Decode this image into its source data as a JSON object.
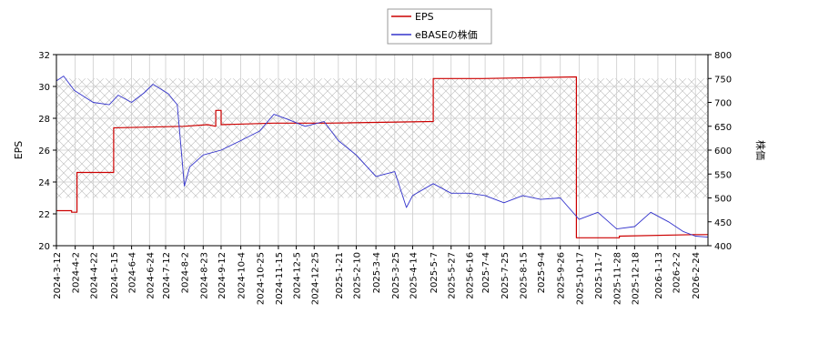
{
  "chart_data": {
    "type": "line",
    "legend": {
      "placement": "top-center",
      "entries": [
        "EPS",
        "eBASEの株価"
      ]
    },
    "ylabel_left": "EPS",
    "ylabel_right": "株価",
    "ylim_left": [
      20,
      32
    ],
    "ylim_right": [
      400,
      800
    ],
    "yticks_left": [
      "20",
      "22",
      "24",
      "26",
      "28",
      "30",
      "32"
    ],
    "yticks_right": [
      "400",
      "450",
      "500",
      "550",
      "600",
      "650",
      "700",
      "750",
      "800"
    ],
    "x_range": [
      "2024-03-12",
      "2026-03-10"
    ],
    "xticks": [
      "2024-3-12",
      "2024-4-2",
      "2024-4-22",
      "2024-5-15",
      "2024-6-4",
      "2024-6-24",
      "2024-7-12",
      "2024-8-2",
      "2024-8-23",
      "2024-9-12",
      "2024-10-4",
      "2024-10-25",
      "2024-11-15",
      "2024-12-5",
      "2024-12-25",
      "2025-1-21",
      "2025-2-10",
      "2025-3-4",
      "2025-3-25",
      "2025-4-14",
      "2025-5-7",
      "2025-5-27",
      "2025-6-16",
      "2025-7-4",
      "2025-7-25",
      "2025-8-15",
      "2025-9-4",
      "2025-9-26",
      "2025-10-17",
      "2025-11-7",
      "2025-11-28",
      "2025-12-18",
      "2026-1-13",
      "2026-2-2",
      "2026-2-24"
    ],
    "grid": true,
    "hatch_band_right": [
      500,
      750
    ],
    "colors": {
      "eps": "#cc0000",
      "price": "#3333cc",
      "grid": "#cccccc",
      "hatch": "#bbbbbb"
    },
    "series": [
      {
        "name": "EPS",
        "axis": "left",
        "points": [
          [
            "2024-03-12",
            22.2
          ],
          [
            "2024-03-29",
            22.2
          ],
          [
            "2024-03-29",
            22.1
          ],
          [
            "2024-04-04",
            22.1
          ],
          [
            "2024-04-04",
            24.6
          ],
          [
            "2024-05-15",
            24.6
          ],
          [
            "2024-05-15",
            27.4
          ],
          [
            "2024-08-01",
            27.5
          ],
          [
            "2024-08-28",
            27.6
          ],
          [
            "2024-09-06",
            27.5
          ],
          [
            "2024-09-06",
            28.5
          ],
          [
            "2024-09-12",
            28.5
          ],
          [
            "2024-09-12",
            27.6
          ],
          [
            "2024-11-10",
            27.7
          ],
          [
            "2025-01-10",
            27.7
          ],
          [
            "2025-05-07",
            27.8
          ],
          [
            "2025-05-07",
            30.5
          ],
          [
            "2025-07-01",
            30.5
          ],
          [
            "2025-10-14",
            30.6
          ],
          [
            "2025-10-14",
            20.5
          ],
          [
            "2025-12-01",
            20.5
          ],
          [
            "2025-12-01",
            20.6
          ],
          [
            "2026-02-24",
            20.7
          ],
          [
            "2026-03-10",
            20.7
          ]
        ]
      },
      {
        "name": "eBASEの株価",
        "axis": "right",
        "points": [
          [
            "2024-03-12",
            745
          ],
          [
            "2024-03-20",
            755
          ],
          [
            "2024-04-01",
            725
          ],
          [
            "2024-04-22",
            700
          ],
          [
            "2024-05-10",
            695
          ],
          [
            "2024-05-20",
            715
          ],
          [
            "2024-06-04",
            700
          ],
          [
            "2024-06-18",
            720
          ],
          [
            "2024-06-28",
            738
          ],
          [
            "2024-07-15",
            718
          ],
          [
            "2024-07-25",
            695
          ],
          [
            "2024-08-02",
            525
          ],
          [
            "2024-08-08",
            565
          ],
          [
            "2024-08-23",
            590
          ],
          [
            "2024-09-12",
            600
          ],
          [
            "2024-10-04",
            620
          ],
          [
            "2024-10-25",
            640
          ],
          [
            "2024-11-10",
            675
          ],
          [
            "2024-11-25",
            665
          ],
          [
            "2024-12-15",
            650
          ],
          [
            "2025-01-05",
            660
          ],
          [
            "2025-01-21",
            620
          ],
          [
            "2025-02-10",
            590
          ],
          [
            "2025-03-04",
            545
          ],
          [
            "2025-03-25",
            555
          ],
          [
            "2025-04-07",
            480
          ],
          [
            "2025-04-14",
            505
          ],
          [
            "2025-05-07",
            530
          ],
          [
            "2025-05-27",
            510
          ],
          [
            "2025-06-16",
            510
          ],
          [
            "2025-07-04",
            505
          ],
          [
            "2025-07-25",
            490
          ],
          [
            "2025-08-15",
            505
          ],
          [
            "2025-09-04",
            497
          ],
          [
            "2025-09-26",
            500
          ],
          [
            "2025-10-17",
            455
          ],
          [
            "2025-11-07",
            470
          ],
          [
            "2025-11-28",
            435
          ],
          [
            "2025-12-18",
            440
          ],
          [
            "2026-01-05",
            470
          ],
          [
            "2026-01-25",
            450
          ],
          [
            "2026-02-10",
            430
          ],
          [
            "2026-02-24",
            420
          ],
          [
            "2026-03-10",
            418
          ]
        ]
      }
    ]
  }
}
